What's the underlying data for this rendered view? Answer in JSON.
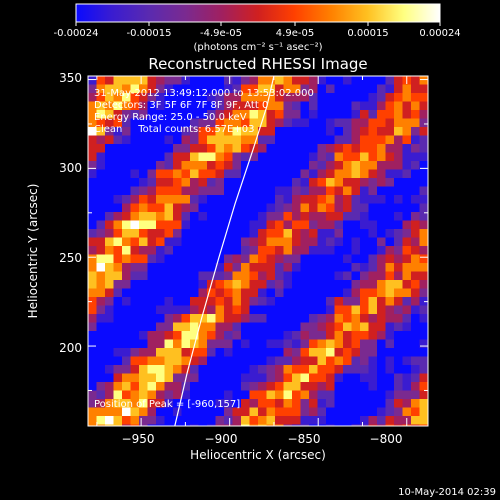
{
  "colors": {
    "background": "#000000",
    "foreground": "#ffffff",
    "colormap": [
      "#0a0aff",
      "#3a1cd0",
      "#5a2ab0",
      "#7a2a90",
      "#a02060",
      "#d02020",
      "#ff4000",
      "#ff8000",
      "#ffc020",
      "#ffff80",
      "#ffffff"
    ]
  },
  "colorbar": {
    "ticks": [
      "-0.00024",
      "-0.00015",
      "-4.9e-05",
      "4.9e-05",
      "0.00015",
      "0.00024"
    ],
    "unit_label": "(photons cm⁻² s⁻¹ asec⁻²)",
    "range": [
      -0.00024,
      0.00024
    ]
  },
  "chart_data": {
    "type": "heatmap",
    "title": "Reconstructed RHESSI Image",
    "xlabel": "Heliocentric X (arcsec)",
    "ylabel": "Heliocentric Y (arcsec)",
    "xlim": [
      -980,
      -788
    ],
    "ylim": [
      155,
      352
    ],
    "xticks": [
      -950,
      -900,
      -850,
      -800
    ],
    "yticks": [
      200,
      250,
      300,
      350
    ],
    "xtick_labels": [
      "−950",
      "−900",
      "−850",
      "−800"
    ],
    "ytick_labels": [
      "200",
      "250",
      "300",
      "350"
    ],
    "annotations": [
      "31-May-2012 13:49:12.000 to 13:53:02.000",
      "Detectors: 3F 5F 6F 7F 8F 9F, Att 0",
      "Energy Range: 25.0 - 50.0 keV",
      "Clean     Total counts: 6.57E+03"
    ],
    "peak_label": "Position of Peak = [-960,157]",
    "limb_curve": [
      [
        -931,
        155
      ],
      [
        -924,
        185
      ],
      [
        -916,
        215
      ],
      [
        -906,
        250
      ],
      [
        -897,
        280
      ],
      [
        -887,
        310
      ],
      [
        -879,
        335
      ],
      [
        -875,
        352
      ]
    ]
  },
  "footer": {
    "timestamp": "10-May-2014 02:39"
  }
}
